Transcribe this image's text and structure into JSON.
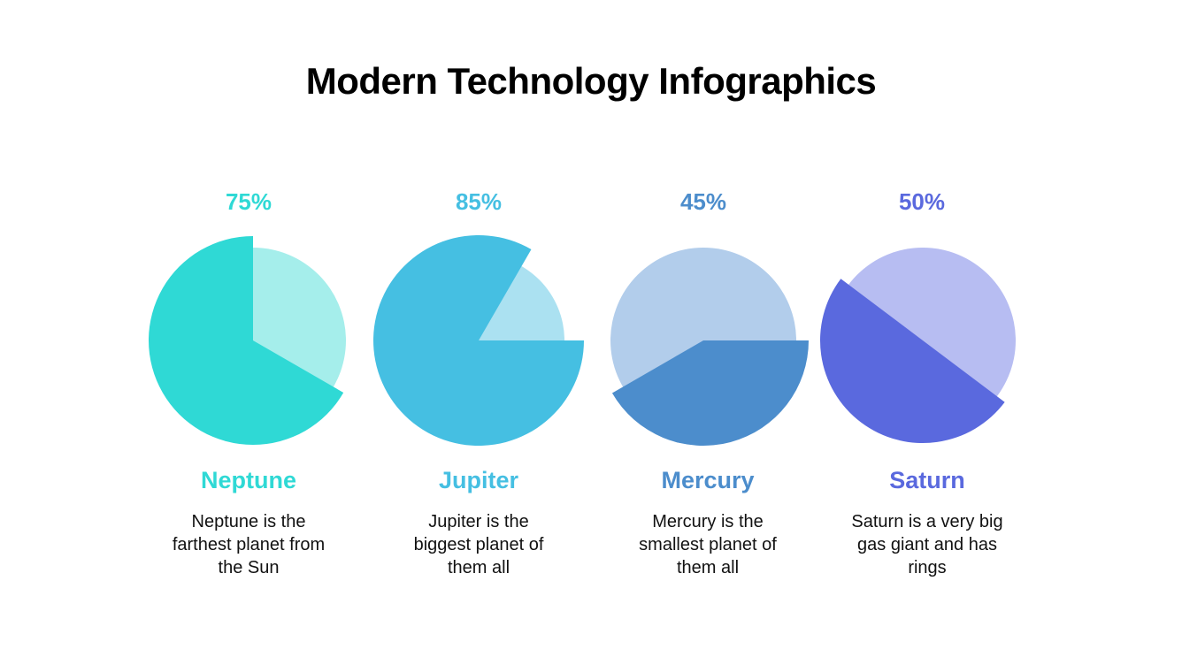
{
  "title": "Modern Technology Infographics",
  "chart_data": {
    "type": "pie",
    "title": "Modern Technology Infographics",
    "items": [
      {
        "name": "Neptune",
        "percent": 75,
        "label": "75%",
        "description": "Neptune is the farthest planet from the Sun",
        "color": "#2fd9d5",
        "light_color": "#a5eeeb"
      },
      {
        "name": "Jupiter",
        "percent": 85,
        "label": "85%",
        "description": "Jupiter is the biggest planet of them all",
        "color": "#45bfe2",
        "light_color": "#abe1f1"
      },
      {
        "name": "Mercury",
        "percent": 45,
        "label": "45%",
        "description": "Mercury is the smallest planet of them all",
        "color": "#4c8dcc",
        "light_color": "#b2cdeb"
      },
      {
        "name": "Saturn",
        "percent": 50,
        "label": "50%",
        "description": "Saturn is a very big gas giant and has rings",
        "color": "#5a69de",
        "light_color": "#b7bdf2"
      }
    ]
  }
}
